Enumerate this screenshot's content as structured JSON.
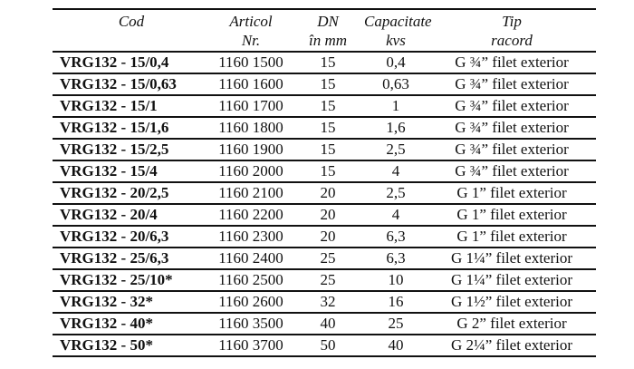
{
  "table": {
    "headers": [
      {
        "line1": "Cod",
        "line2": ""
      },
      {
        "line1": "Articol",
        "line2": "Nr."
      },
      {
        "line1": "DN",
        "line2": "în mm"
      },
      {
        "line1": "Capacitate",
        "line2": "kvs"
      },
      {
        "line1": "Tip",
        "line2": "racord"
      }
    ],
    "rows": [
      {
        "cod": "VRG132 - 15/0,4",
        "articol": "1160 1500",
        "dn": "15",
        "kvs": "0,4",
        "tip": "G ¾” filet exterior"
      },
      {
        "cod": "VRG132 - 15/0,63",
        "articol": "1160 1600",
        "dn": "15",
        "kvs": "0,63",
        "tip": "G ¾” filet exterior"
      },
      {
        "cod": "VRG132 - 15/1",
        "articol": "1160 1700",
        "dn": "15",
        "kvs": "1",
        "tip": "G ¾” filet exterior"
      },
      {
        "cod": "VRG132 - 15/1,6",
        "articol": "1160 1800",
        "dn": "15",
        "kvs": "1,6",
        "tip": "G ¾” filet exterior"
      },
      {
        "cod": "VRG132 - 15/2,5",
        "articol": "1160 1900",
        "dn": "15",
        "kvs": "2,5",
        "tip": "G ¾” filet exterior"
      },
      {
        "cod": "VRG132 - 15/4",
        "articol": "1160 2000",
        "dn": "15",
        "kvs": "4",
        "tip": "G ¾” filet exterior"
      },
      {
        "cod": "VRG132 - 20/2,5",
        "articol": "1160 2100",
        "dn": "20",
        "kvs": "2,5",
        "tip": "G 1” filet exterior"
      },
      {
        "cod": "VRG132 - 20/4",
        "articol": "1160 2200",
        "dn": "20",
        "kvs": "4",
        "tip": "G 1” filet exterior"
      },
      {
        "cod": "VRG132 - 20/6,3",
        "articol": "1160 2300",
        "dn": "20",
        "kvs": "6,3",
        "tip": "G 1” filet exterior"
      },
      {
        "cod": "VRG132 - 25/6,3",
        "articol": "1160 2400",
        "dn": "25",
        "kvs": "6,3",
        "tip": "G 1¼” filet exterior"
      },
      {
        "cod": "VRG132 - 25/10*",
        "articol": "1160 2500",
        "dn": "25",
        "kvs": "10",
        "tip": "G 1¼” filet exterior"
      },
      {
        "cod": "VRG132 - 32*",
        "articol": "1160 2600",
        "dn": "32",
        "kvs": "16",
        "tip": "G 1½” filet exterior"
      },
      {
        "cod": "VRG132 - 40*",
        "articol": "1160 3500",
        "dn": "40",
        "kvs": "25",
        "tip": "G 2” filet exterior"
      },
      {
        "cod": "VRG132 - 50*",
        "articol": "1160 3700",
        "dn": "50",
        "kvs": "40",
        "tip": "G 2¼” filet exterior"
      }
    ]
  }
}
